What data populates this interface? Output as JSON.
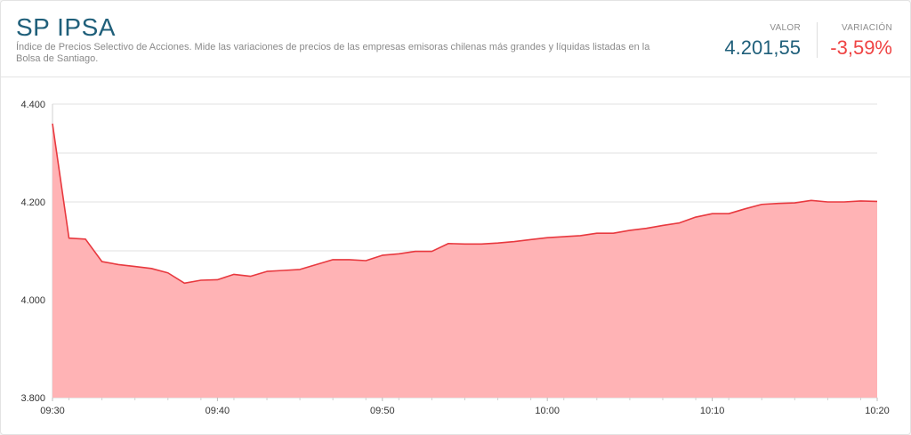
{
  "header": {
    "title": "SP IPSA",
    "description": "Índice de Precios Selectivo de Acciones. Mide las variaciones de precios de las empresas emisoras chilenas más grandes y líquidas listadas en la Bolsa de Santiago.",
    "valor_label": "VALOR",
    "valor": "4.201,55",
    "variacion_label": "VARIACIÓN",
    "variacion": "-3,59%"
  },
  "colors": {
    "title": "#1f5f7a",
    "line": "#e8393f",
    "fill": "#ffb3b5",
    "negative": "#ef4444"
  },
  "chart_data": {
    "type": "area",
    "x": [
      "09:30",
      "09:31",
      "09:32",
      "09:33",
      "09:34",
      "09:35",
      "09:36",
      "09:37",
      "09:38",
      "09:39",
      "09:40",
      "09:41",
      "09:42",
      "09:43",
      "09:44",
      "09:45",
      "09:46",
      "09:47",
      "09:48",
      "09:49",
      "09:50",
      "09:51",
      "09:52",
      "09:53",
      "09:54",
      "09:55",
      "09:56",
      "09:57",
      "09:58",
      "09:59",
      "10:00",
      "10:01",
      "10:02",
      "10:03",
      "10:04",
      "10:05",
      "10:06",
      "10:07",
      "10:08",
      "10:09",
      "10:10",
      "10:11",
      "10:12",
      "10:13",
      "10:14",
      "10:15",
      "10:16",
      "10:17",
      "10:18",
      "10:19",
      "10:20"
    ],
    "series": [
      {
        "values": [
          4360,
          4126,
          4124,
          4078,
          4072,
          4068,
          4064,
          4055,
          4034,
          4040,
          4041,
          4052,
          4048,
          4058,
          4060,
          4062,
          4072,
          4082,
          4082,
          4080,
          4091,
          4094,
          4099,
          4099,
          4115,
          4114,
          4114,
          4116,
          4119,
          4123,
          4127,
          4129,
          4131,
          4136,
          4136,
          4142,
          4146,
          4152,
          4157,
          4169,
          4176,
          4176,
          4186,
          4195,
          4197,
          4198,
          4203,
          4200,
          4200,
          4202,
          4201
        ]
      }
    ],
    "ylim": [
      3800,
      4400
    ],
    "yticks": [
      3800,
      4000,
      4200,
      4400
    ],
    "ytick_labels": [
      "3.800",
      "4.000",
      "4.200",
      "4.400"
    ],
    "xticks": [
      "09:30",
      "09:40",
      "09:50",
      "10:00",
      "10:10",
      "10:20"
    ],
    "grid": true,
    "legend": "none"
  }
}
